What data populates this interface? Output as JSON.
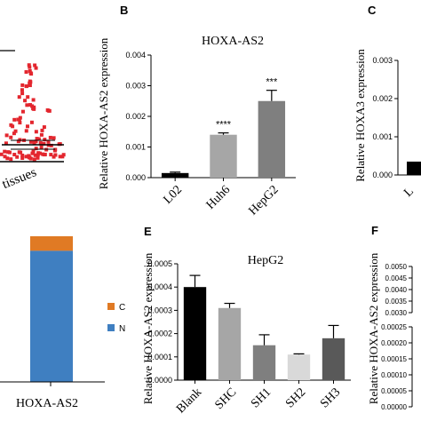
{
  "panel_letters": {
    "b": "B",
    "c": "C",
    "e": "E",
    "f": "F"
  },
  "panel_a": {
    "xlabel_fragment": "tissues"
  },
  "panel_d": {
    "category": "HOXA-AS2",
    "legend": [
      {
        "label": "C",
        "color": "#e07a24"
      },
      {
        "label": "N",
        "color": "#3f7fc1"
      }
    ],
    "stack_fraction_c": 0.1
  },
  "chart_data": [
    {
      "id": "panel-b",
      "type": "bar",
      "title": "HOXA-AS2",
      "ylabel": "Relative HOXA-AS2 expression",
      "categories": [
        "L02",
        "Huh6",
        "HepG2"
      ],
      "values": [
        0.00015,
        0.0014,
        0.0025
      ],
      "errors": [
        3e-05,
        6e-05,
        0.00035
      ],
      "colors": [
        "#000000",
        "#a6a6a6",
        "#7f7f7f"
      ],
      "annotations": [
        "",
        "****",
        "***"
      ],
      "ylim": [
        0,
        0.004
      ],
      "yticks": [
        "0.000",
        "0.001",
        "0.002",
        "0.003",
        "0.004"
      ]
    },
    {
      "id": "panel-c",
      "type": "bar",
      "title": "",
      "ylabel": "Relative HOXA3 expression",
      "categories": [
        "L"
      ],
      "values": [
        0.00035
      ],
      "ylim": [
        0,
        0.003
      ],
      "yticks": [
        "0.000",
        "0.001",
        "0.002",
        "0.003"
      ]
    },
    {
      "id": "panel-e",
      "type": "bar",
      "title": "HepG2",
      "ylabel": "Relative HOXA-AS2 expression",
      "categories": [
        "Blank",
        "SHC",
        "SH1",
        "SH2",
        "SH3"
      ],
      "values": [
        0.0004,
        0.00031,
        0.00015,
        0.00011,
        0.00018
      ],
      "errors": [
        5e-05,
        2e-05,
        4.5e-05,
        3e-06,
        5.5e-05
      ],
      "colors": [
        "#000000",
        "#a6a6a6",
        "#7f7f7f",
        "#d9d9d9",
        "#595959"
      ],
      "ylim": [
        0,
        0.0005
      ],
      "yticks": [
        "0.0000",
        "0.0001",
        "0.0002",
        "0.0003",
        "0.0004",
        "0.0005"
      ]
    },
    {
      "id": "panel-f",
      "type": "bar",
      "title": "",
      "ylabel": "Relative HOXA-AS2 expression",
      "upper_yticks": [
        "0.0030",
        "0.0035",
        "0.0040",
        "0.0045",
        "0.0050"
      ],
      "lower_yticks": [
        "0.00000",
        "0.00005",
        "0.00010",
        "0.00015",
        "0.00020",
        "0.00025"
      ]
    }
  ]
}
